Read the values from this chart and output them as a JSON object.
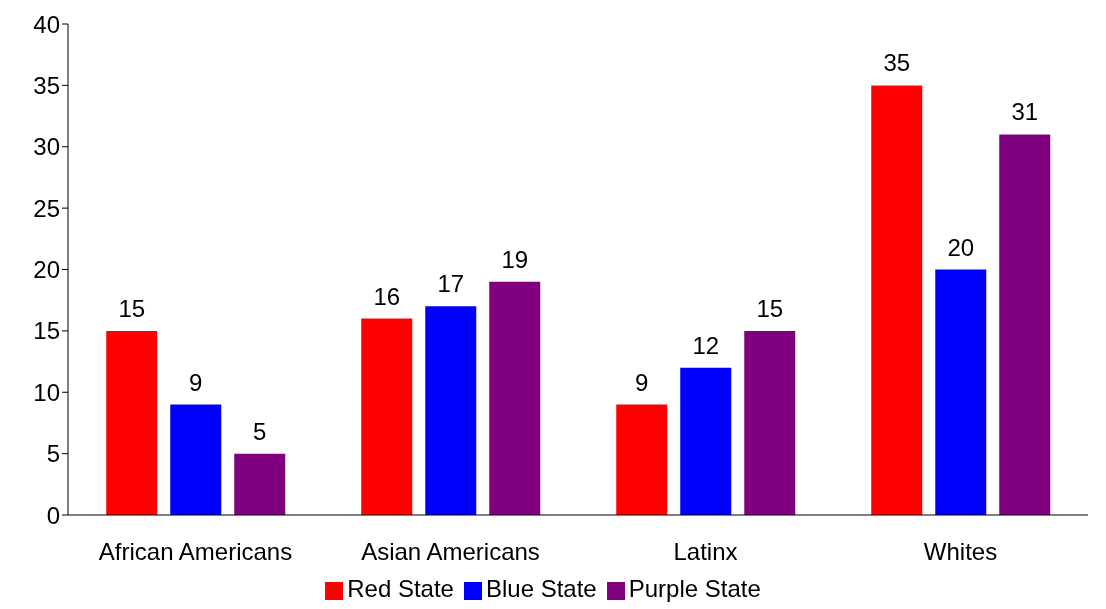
{
  "chart_data": {
    "type": "bar",
    "categories": [
      "African Americans",
      "Asian Americans",
      "Latinx",
      "Whites"
    ],
    "series": [
      {
        "name": "Red State",
        "color": "#ff0000",
        "values": [
          15,
          16,
          9,
          35
        ]
      },
      {
        "name": "Blue State",
        "color": "#0000ff",
        "values": [
          9,
          17,
          12,
          20
        ]
      },
      {
        "name": "Purple State",
        "color": "#800080",
        "values": [
          5,
          19,
          15,
          31
        ]
      }
    ],
    "ylim": [
      0,
      40
    ],
    "yticks": [
      0,
      5,
      10,
      15,
      20,
      25,
      30,
      35,
      40
    ],
    "grid": false,
    "legend": "bottom",
    "data_labels": true
  }
}
